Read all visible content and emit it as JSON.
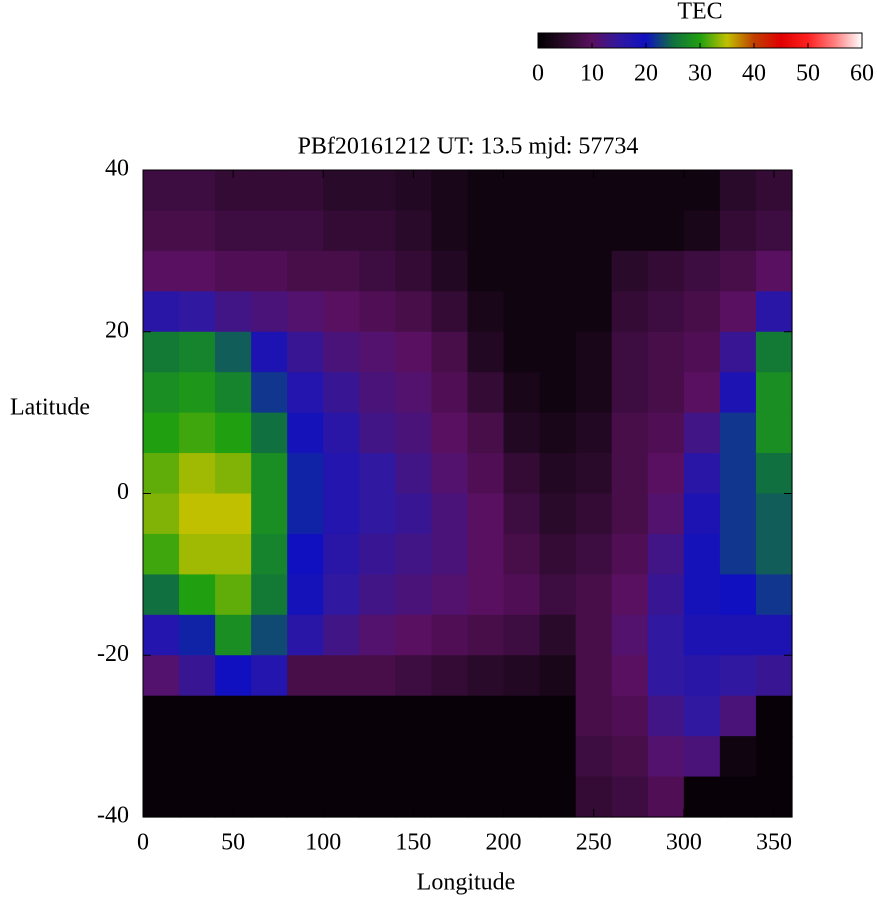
{
  "chart_data": {
    "type": "heatmap",
    "title": "PBf20161212  UT: 13.5  mjd: 57734",
    "x_label": "Longitude",
    "y_label": "Latitude",
    "xlim": [
      0,
      360
    ],
    "ylim": [
      -40,
      40
    ],
    "xticks": [
      0,
      50,
      100,
      150,
      200,
      250,
      300,
      350
    ],
    "yticks": [
      -40,
      -20,
      0,
      20,
      40
    ],
    "colorbar_label": "TEC",
    "clim": [
      0,
      60
    ],
    "cticks": [
      0,
      10,
      20,
      30,
      40,
      50,
      60
    ],
    "colorscale": [
      [
        0,
        "#000000"
      ],
      [
        5,
        "#2a0a2a"
      ],
      [
        10,
        "#5a1060"
      ],
      [
        15,
        "#3018a0"
      ],
      [
        20,
        "#1010c0"
      ],
      [
        25,
        "#107040"
      ],
      [
        30,
        "#20a010"
      ],
      [
        35,
        "#c0c000"
      ],
      [
        40,
        "#c04000"
      ],
      [
        45,
        "#e00000"
      ],
      [
        50,
        "#ff2020"
      ],
      [
        55,
        "#ff8080"
      ],
      [
        60,
        "#ffffff"
      ]
    ],
    "x": [
      10,
      30,
      50,
      70,
      90,
      110,
      130,
      150,
      170,
      190,
      210,
      230,
      250,
      270,
      290,
      310,
      330,
      350
    ],
    "y": [
      37.5,
      32.5,
      27.5,
      22.5,
      17.5,
      12.5,
      7.5,
      2.5,
      -2.5,
      -7.5,
      -12.5,
      -17.5,
      -22.5,
      -27.5,
      -32.5,
      -37.5
    ],
    "z": [
      [
        7,
        7,
        6,
        6,
        6,
        5,
        5,
        4,
        3,
        2,
        2,
        2,
        2,
        2,
        2,
        2,
        5,
        6
      ],
      [
        8,
        8,
        7,
        7,
        7,
        6,
        6,
        5,
        3,
        2,
        2,
        2,
        2,
        2,
        2,
        3,
        6,
        7
      ],
      [
        10,
        10,
        9,
        9,
        8,
        8,
        7,
        6,
        4,
        2,
        2,
        2,
        2,
        5,
        6,
        7,
        8,
        10
      ],
      [
        16,
        15,
        13,
        12,
        11,
        10,
        9,
        8,
        6,
        3,
        2,
        2,
        2,
        6,
        7,
        8,
        10,
        16
      ],
      [
        26,
        27,
        24,
        18,
        14,
        12,
        11,
        10,
        8,
        4,
        2,
        2,
        3,
        7,
        8,
        9,
        14,
        26
      ],
      [
        28,
        29,
        27,
        22,
        17,
        14,
        12,
        11,
        9,
        6,
        3,
        2,
        3,
        7,
        8,
        10,
        18,
        28
      ],
      [
        30,
        31,
        30,
        25,
        19,
        16,
        13,
        12,
        10,
        8,
        4,
        3,
        4,
        8,
        9,
        13,
        22,
        28
      ],
      [
        32,
        34,
        33,
        28,
        21,
        17,
        15,
        13,
        11,
        9,
        6,
        4,
        5,
        8,
        10,
        16,
        22,
        25
      ],
      [
        33,
        35,
        35,
        28,
        21,
        17,
        15,
        14,
        12,
        10,
        7,
        5,
        6,
        8,
        11,
        18,
        22,
        24
      ],
      [
        31,
        34,
        34,
        27,
        20,
        16,
        14,
        13,
        12,
        10,
        8,
        6,
        7,
        9,
        13,
        19,
        22,
        24
      ],
      [
        25,
        30,
        32,
        26,
        19,
        15,
        13,
        12,
        11,
        10,
        9,
        7,
        8,
        10,
        14,
        19,
        20,
        22
      ],
      [
        17,
        21,
        28,
        23,
        16,
        13,
        11,
        10,
        9,
        8,
        7,
        5,
        8,
        11,
        15,
        18,
        18,
        18
      ],
      [
        11,
        14,
        20,
        17,
        8,
        8,
        8,
        7,
        6,
        5,
        4,
        3,
        8,
        10,
        15,
        16,
        15,
        14
      ],
      [
        1,
        1,
        1,
        1,
        1,
        1,
        1,
        1,
        1,
        1,
        1,
        1,
        8,
        9,
        13,
        15,
        12,
        1
      ],
      [
        1,
        1,
        1,
        1,
        1,
        1,
        1,
        1,
        1,
        1,
        1,
        1,
        7,
        8,
        11,
        12,
        2,
        1
      ],
      [
        1,
        1,
        1,
        1,
        1,
        1,
        1,
        1,
        1,
        1,
        1,
        1,
        6,
        7,
        9,
        1,
        1,
        1
      ]
    ]
  }
}
